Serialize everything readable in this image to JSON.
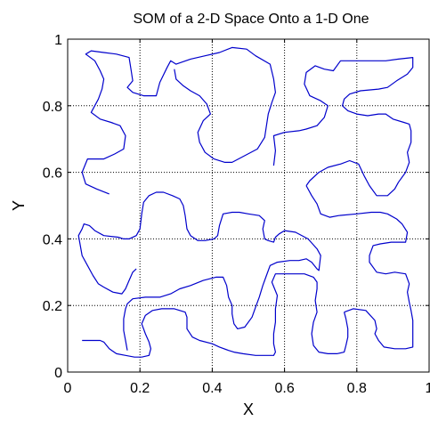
{
  "chart_data": {
    "type": "line",
    "title": "SOM of a 2-D Space Onto a 1-D One",
    "xlabel": "X",
    "ylabel": "Y",
    "xlim": [
      0,
      1
    ],
    "ylim": [
      0,
      1
    ],
    "x_ticks": [
      "0",
      "0.2",
      "0.4",
      "0.6",
      "0.8",
      "1"
    ],
    "y_ticks": [
      "0",
      "0.2",
      "0.4",
      "0.6",
      "0.8",
      "1"
    ],
    "grid": true,
    "line_color": "#0000cc",
    "grid_color": "#000000",
    "series": [
      {
        "points": [
          [
            0.115,
            0.535
          ],
          [
            0.08,
            0.55
          ],
          [
            0.05,
            0.565
          ],
          [
            0.04,
            0.6
          ],
          [
            0.055,
            0.64
          ],
          [
            0.08,
            0.64
          ],
          [
            0.1,
            0.64
          ],
          [
            0.13,
            0.655
          ],
          [
            0.155,
            0.67
          ],
          [
            0.16,
            0.71
          ],
          [
            0.145,
            0.74
          ],
          [
            0.12,
            0.75
          ],
          [
            0.09,
            0.76
          ],
          [
            0.065,
            0.78
          ],
          [
            0.085,
            0.82
          ],
          [
            0.095,
            0.85
          ],
          [
            0.1,
            0.88
          ],
          [
            0.09,
            0.905
          ],
          [
            0.075,
            0.935
          ],
          [
            0.05,
            0.955
          ],
          [
            0.065,
            0.965
          ],
          [
            0.1,
            0.96
          ],
          [
            0.135,
            0.955
          ],
          [
            0.17,
            0.945
          ],
          [
            0.175,
            0.91
          ],
          [
            0.18,
            0.875
          ],
          [
            0.165,
            0.855
          ],
          [
            0.18,
            0.84
          ],
          [
            0.21,
            0.83
          ],
          [
            0.245,
            0.83
          ],
          [
            0.255,
            0.87
          ],
          [
            0.275,
            0.915
          ],
          [
            0.285,
            0.935
          ],
          [
            0.3,
            0.925
          ],
          [
            0.34,
            0.94
          ],
          [
            0.38,
            0.95
          ],
          [
            0.42,
            0.96
          ],
          [
            0.455,
            0.975
          ],
          [
            0.495,
            0.97
          ],
          [
            0.52,
            0.95
          ],
          [
            0.56,
            0.925
          ],
          [
            0.57,
            0.88
          ],
          [
            0.575,
            0.84
          ],
          [
            0.565,
            0.81
          ],
          [
            0.555,
            0.775
          ],
          [
            0.55,
            0.74
          ],
          [
            0.545,
            0.705
          ],
          [
            0.525,
            0.67
          ],
          [
            0.49,
            0.65
          ],
          [
            0.455,
            0.63
          ],
          [
            0.435,
            0.63
          ],
          [
            0.405,
            0.64
          ],
          [
            0.38,
            0.66
          ],
          [
            0.365,
            0.69
          ],
          [
            0.36,
            0.72
          ],
          [
            0.375,
            0.755
          ],
          [
            0.395,
            0.775
          ],
          [
            0.385,
            0.805
          ],
          [
            0.365,
            0.83
          ],
          [
            0.34,
            0.845
          ],
          [
            0.32,
            0.86
          ],
          [
            0.3,
            0.88
          ],
          [
            0.295,
            0.91
          ]
        ]
      },
      {
        "points": [
          [
            0.57,
            0.62
          ],
          [
            0.575,
            0.665
          ],
          [
            0.57,
            0.71
          ],
          [
            0.6,
            0.72
          ],
          [
            0.64,
            0.725
          ],
          [
            0.66,
            0.73
          ],
          [
            0.69,
            0.74
          ],
          [
            0.71,
            0.765
          ],
          [
            0.72,
            0.8
          ],
          [
            0.7,
            0.815
          ],
          [
            0.67,
            0.83
          ],
          [
            0.655,
            0.865
          ],
          [
            0.66,
            0.9
          ],
          [
            0.685,
            0.92
          ],
          [
            0.71,
            0.91
          ],
          [
            0.735,
            0.905
          ],
          [
            0.755,
            0.935
          ],
          [
            0.8,
            0.935
          ],
          [
            0.84,
            0.935
          ],
          [
            0.88,
            0.935
          ],
          [
            0.915,
            0.94
          ],
          [
            0.955,
            0.945
          ],
          [
            0.955,
            0.915
          ],
          [
            0.94,
            0.895
          ],
          [
            0.91,
            0.875
          ],
          [
            0.885,
            0.855
          ],
          [
            0.86,
            0.85
          ],
          [
            0.81,
            0.845
          ],
          [
            0.78,
            0.835
          ],
          [
            0.765,
            0.82
          ],
          [
            0.76,
            0.8
          ],
          [
            0.775,
            0.785
          ],
          [
            0.8,
            0.775
          ],
          [
            0.83,
            0.77
          ],
          [
            0.86,
            0.775
          ],
          [
            0.88,
            0.775
          ],
          [
            0.9,
            0.76
          ],
          [
            0.93,
            0.75
          ],
          [
            0.945,
            0.745
          ],
          [
            0.95,
            0.725
          ],
          [
            0.95,
            0.69
          ],
          [
            0.94,
            0.66
          ],
          [
            0.945,
            0.63
          ],
          [
            0.935,
            0.6
          ],
          [
            0.915,
            0.57
          ],
          [
            0.905,
            0.55
          ],
          [
            0.885,
            0.53
          ],
          [
            0.855,
            0.53
          ],
          [
            0.835,
            0.56
          ],
          [
            0.82,
            0.59
          ],
          [
            0.805,
            0.625
          ],
          [
            0.78,
            0.635
          ],
          [
            0.755,
            0.625
          ],
          [
            0.72,
            0.615
          ],
          [
            0.695,
            0.6
          ],
          [
            0.67,
            0.575
          ],
          [
            0.66,
            0.56
          ]
        ]
      },
      {
        "points": [
          [
            0.66,
            0.56
          ],
          [
            0.675,
            0.53
          ],
          [
            0.69,
            0.505
          ],
          [
            0.7,
            0.475
          ],
          [
            0.725,
            0.465
          ],
          [
            0.75,
            0.47
          ],
          [
            0.8,
            0.475
          ],
          [
            0.84,
            0.48
          ],
          [
            0.865,
            0.48
          ],
          [
            0.885,
            0.475
          ],
          [
            0.91,
            0.46
          ],
          [
            0.925,
            0.445
          ],
          [
            0.94,
            0.42
          ],
          [
            0.935,
            0.39
          ],
          [
            0.895,
            0.39
          ],
          [
            0.865,
            0.385
          ],
          [
            0.845,
            0.38
          ],
          [
            0.835,
            0.35
          ],
          [
            0.835,
            0.33
          ],
          [
            0.855,
            0.3
          ],
          [
            0.88,
            0.295
          ],
          [
            0.905,
            0.3
          ],
          [
            0.935,
            0.295
          ],
          [
            0.945,
            0.265
          ],
          [
            0.94,
            0.24
          ],
          [
            0.945,
            0.21
          ],
          [
            0.95,
            0.185
          ],
          [
            0.955,
            0.155
          ],
          [
            0.955,
            0.13
          ],
          [
            0.955,
            0.105
          ],
          [
            0.955,
            0.075
          ],
          [
            0.935,
            0.07
          ],
          [
            0.905,
            0.07
          ],
          [
            0.875,
            0.075
          ],
          [
            0.86,
            0.095
          ],
          [
            0.85,
            0.115
          ],
          [
            0.855,
            0.13
          ],
          [
            0.85,
            0.155
          ],
          [
            0.825,
            0.185
          ],
          [
            0.79,
            0.19
          ],
          [
            0.765,
            0.18
          ]
        ]
      },
      {
        "points": [
          [
            0.765,
            0.18
          ],
          [
            0.77,
            0.16
          ],
          [
            0.775,
            0.13
          ],
          [
            0.775,
            0.105
          ],
          [
            0.77,
            0.08
          ],
          [
            0.765,
            0.06
          ],
          [
            0.745,
            0.055
          ],
          [
            0.72,
            0.055
          ],
          [
            0.695,
            0.06
          ],
          [
            0.68,
            0.08
          ],
          [
            0.675,
            0.115
          ],
          [
            0.68,
            0.15
          ],
          [
            0.69,
            0.18
          ],
          [
            0.685,
            0.215
          ],
          [
            0.69,
            0.25
          ],
          [
            0.69,
            0.27
          ],
          [
            0.68,
            0.285
          ],
          [
            0.655,
            0.295
          ],
          [
            0.63,
            0.295
          ],
          [
            0.6,
            0.295
          ],
          [
            0.575,
            0.295
          ],
          [
            0.565,
            0.27
          ],
          [
            0.58,
            0.23
          ],
          [
            0.575,
            0.19
          ],
          [
            0.575,
            0.15
          ],
          [
            0.57,
            0.115
          ],
          [
            0.57,
            0.085
          ],
          [
            0.575,
            0.06
          ],
          [
            0.57,
            0.05
          ],
          [
            0.545,
            0.05
          ],
          [
            0.52,
            0.05
          ],
          [
            0.485,
            0.055
          ],
          [
            0.46,
            0.06
          ],
          [
            0.445,
            0.065
          ],
          [
            0.42,
            0.075
          ],
          [
            0.4,
            0.085
          ],
          [
            0.365,
            0.095
          ],
          [
            0.345,
            0.105
          ],
          [
            0.33,
            0.13
          ],
          [
            0.33,
            0.165
          ],
          [
            0.325,
            0.18
          ],
          [
            0.295,
            0.19
          ],
          [
            0.26,
            0.19
          ],
          [
            0.235,
            0.185
          ],
          [
            0.215,
            0.17
          ],
          [
            0.205,
            0.145
          ],
          [
            0.215,
            0.115
          ],
          [
            0.225,
            0.09
          ],
          [
            0.23,
            0.07
          ],
          [
            0.225,
            0.05
          ],
          [
            0.205,
            0.045
          ],
          [
            0.185,
            0.045
          ],
          [
            0.16,
            0.05
          ],
          [
            0.135,
            0.055
          ],
          [
            0.115,
            0.07
          ],
          [
            0.1,
            0.09
          ],
          [
            0.09,
            0.095
          ],
          [
            0.06,
            0.095
          ],
          [
            0.04,
            0.095
          ]
        ]
      },
      {
        "points": [
          [
            0.165,
            0.065
          ],
          [
            0.16,
            0.095
          ],
          [
            0.155,
            0.125
          ],
          [
            0.155,
            0.16
          ],
          [
            0.16,
            0.19
          ],
          [
            0.165,
            0.205
          ],
          [
            0.18,
            0.22
          ],
          [
            0.215,
            0.225
          ],
          [
            0.255,
            0.225
          ],
          [
            0.285,
            0.235
          ],
          [
            0.31,
            0.25
          ],
          [
            0.34,
            0.26
          ],
          [
            0.375,
            0.275
          ],
          [
            0.41,
            0.285
          ],
          [
            0.43,
            0.285
          ],
          [
            0.44,
            0.26
          ],
          [
            0.445,
            0.225
          ],
          [
            0.455,
            0.2
          ],
          [
            0.455,
            0.175
          ],
          [
            0.46,
            0.145
          ],
          [
            0.47,
            0.13
          ],
          [
            0.49,
            0.135
          ],
          [
            0.51,
            0.165
          ],
          [
            0.52,
            0.195
          ],
          [
            0.53,
            0.225
          ],
          [
            0.54,
            0.26
          ],
          [
            0.55,
            0.29
          ],
          [
            0.56,
            0.32
          ],
          [
            0.58,
            0.33
          ],
          [
            0.615,
            0.335
          ],
          [
            0.64,
            0.335
          ],
          [
            0.66,
            0.34
          ],
          [
            0.675,
            0.33
          ],
          [
            0.69,
            0.31
          ],
          [
            0.695,
            0.305
          ],
          [
            0.7,
            0.35
          ],
          [
            0.69,
            0.37
          ],
          [
            0.665,
            0.4
          ],
          [
            0.63,
            0.42
          ],
          [
            0.6,
            0.425
          ],
          [
            0.585,
            0.415
          ],
          [
            0.575,
            0.405
          ],
          [
            0.57,
            0.39
          ],
          [
            0.555,
            0.395
          ],
          [
            0.545,
            0.4
          ],
          [
            0.54,
            0.43
          ],
          [
            0.545,
            0.455
          ],
          [
            0.53,
            0.47
          ],
          [
            0.5,
            0.475
          ],
          [
            0.475,
            0.48
          ],
          [
            0.455,
            0.48
          ],
          [
            0.43,
            0.475
          ],
          [
            0.42,
            0.44
          ],
          [
            0.415,
            0.41
          ],
          [
            0.405,
            0.4
          ],
          [
            0.38,
            0.395
          ],
          [
            0.36,
            0.395
          ],
          [
            0.34,
            0.41
          ],
          [
            0.33,
            0.43
          ],
          [
            0.325,
            0.47
          ],
          [
            0.32,
            0.5
          ],
          [
            0.31,
            0.52
          ],
          [
            0.29,
            0.53
          ],
          [
            0.265,
            0.54
          ],
          [
            0.245,
            0.54
          ],
          [
            0.225,
            0.53
          ],
          [
            0.21,
            0.51
          ],
          [
            0.205,
            0.475
          ],
          [
            0.2,
            0.43
          ],
          [
            0.19,
            0.41
          ],
          [
            0.17,
            0.4
          ],
          [
            0.155,
            0.4
          ],
          [
            0.14,
            0.405
          ],
          [
            0.1,
            0.41
          ],
          [
            0.075,
            0.425
          ],
          [
            0.06,
            0.44
          ],
          [
            0.045,
            0.445
          ],
          [
            0.04,
            0.43
          ],
          [
            0.03,
            0.41
          ],
          [
            0.035,
            0.38
          ],
          [
            0.04,
            0.35
          ],
          [
            0.055,
            0.32
          ],
          [
            0.07,
            0.29
          ],
          [
            0.085,
            0.265
          ],
          [
            0.1,
            0.255
          ],
          [
            0.125,
            0.24
          ],
          [
            0.15,
            0.235
          ],
          [
            0.16,
            0.25
          ],
          [
            0.17,
            0.275
          ],
          [
            0.18,
            0.3
          ],
          [
            0.19,
            0.31
          ]
        ]
      }
    ]
  }
}
